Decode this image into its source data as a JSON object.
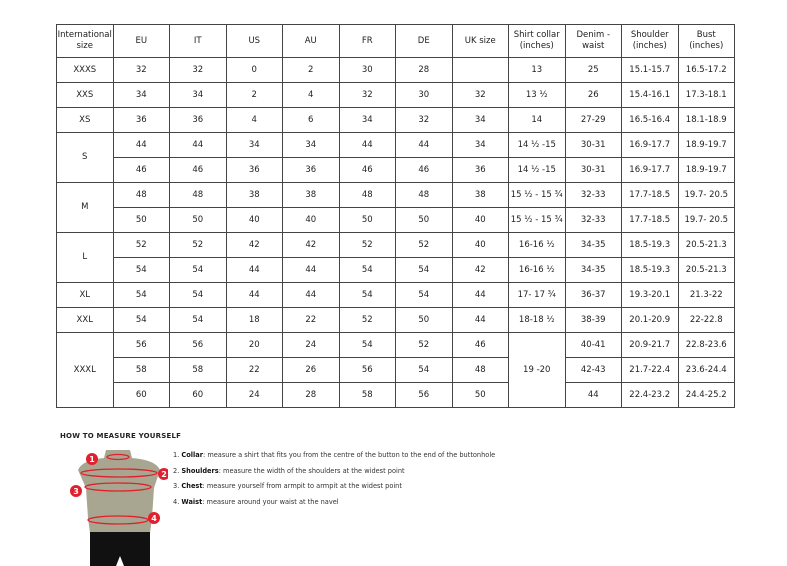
{
  "table": {
    "headers": [
      "International size",
      "EU",
      "IT",
      "US",
      "AU",
      "FR",
      "DE",
      "UK size",
      "Shirt collar (inches)",
      "Denim - waist",
      "Shoulder (inches)",
      "Bust (inches)"
    ],
    "groups": [
      {
        "size": "XXXS",
        "rows": [
          [
            "32",
            "32",
            "0",
            "2",
            "30",
            "28",
            "",
            "13",
            "25",
            "15.1-15.7",
            "16.5-17.2"
          ]
        ]
      },
      {
        "size": "XXS",
        "rows": [
          [
            "34",
            "34",
            "2",
            "4",
            "32",
            "30",
            "32",
            "13 ½",
            "26",
            "15.4-16.1",
            "17.3-18.1"
          ]
        ]
      },
      {
        "size": "XS",
        "rows": [
          [
            "36",
            "36",
            "4",
            "6",
            "34",
            "32",
            "34",
            "14",
            "27-29",
            "16.5-16.4",
            "18.1-18.9"
          ]
        ]
      },
      {
        "size": "S",
        "rows": [
          [
            "44",
            "44",
            "34",
            "34",
            "44",
            "44",
            "34",
            "14 ½ -15",
            "30-31",
            "16.9-17.7",
            "18.9-19.7"
          ],
          [
            "46",
            "46",
            "36",
            "36",
            "46",
            "46",
            "36",
            "14 ½ -15",
            "30-31",
            "16.9-17.7",
            "18.9-19.7"
          ]
        ]
      },
      {
        "size": "M",
        "rows": [
          [
            "48",
            "48",
            "38",
            "38",
            "48",
            "48",
            "38",
            "15 ½ - 15 ¾",
            "32-33",
            "17.7-18.5",
            "19.7- 20.5"
          ],
          [
            "50",
            "50",
            "40",
            "40",
            "50",
            "50",
            "40",
            "15 ½ - 15 ¾",
            "32-33",
            "17.7-18.5",
            "19.7- 20.5"
          ]
        ]
      },
      {
        "size": "L",
        "rows": [
          [
            "52",
            "52",
            "42",
            "42",
            "52",
            "52",
            "40",
            "16-16 ½",
            "34-35",
            "18.5-19.3",
            "20.5-21.3"
          ],
          [
            "54",
            "54",
            "44",
            "44",
            "54",
            "54",
            "42",
            "16-16 ½",
            "34-35",
            "18.5-19.3",
            "20.5-21.3"
          ]
        ]
      },
      {
        "size": "XL",
        "rows": [
          [
            "54",
            "54",
            "44",
            "44",
            "54",
            "54",
            "44",
            "17- 17 ¾",
            "36-37",
            "19.3-20.1",
            "21.3-22"
          ]
        ]
      },
      {
        "size": "XXL",
        "rows": [
          [
            "54",
            "54",
            "18",
            "22",
            "52",
            "50",
            "44",
            "18-18 ½",
            "38-39",
            "20.1-20.9",
            "22-22.8"
          ]
        ]
      },
      {
        "size": "XXXL",
        "rows": [
          [
            "56",
            "56",
            "20",
            "24",
            "54",
            "52",
            "46",
            "19 -20",
            "40-41",
            "20.9-21.7",
            "22.8-23.6"
          ],
          [
            "58",
            "58",
            "22",
            "26",
            "56",
            "54",
            "48",
            null,
            "42-43",
            "21.7-22.4",
            "23.6-24.4"
          ],
          [
            "60",
            "60",
            "24",
            "28",
            "58",
            "56",
            "50",
            null,
            "44",
            "22.4-23.2",
            "24.4-25.2"
          ]
        ]
      }
    ]
  },
  "measure": {
    "title": "HOW TO MEASURE YOURSELF",
    "markers": [
      "1",
      "2",
      "3",
      "4"
    ],
    "steps": [
      {
        "num": "1.",
        "term": "Collar",
        "text": ": measure a shirt that fits you from the centre of the button to the end of the buttonhole"
      },
      {
        "num": "2.",
        "term": "Shoulders",
        "text": ": measure the width of the shoulders at the widest point"
      },
      {
        "num": "3.",
        "term": "Chest",
        "text": ": measure yourself from armpit to armpit at the widest point"
      },
      {
        "num": "4.",
        "term": "Waist",
        "text": ": measure around your waist at the navel"
      }
    ],
    "accent_color": "#e0202e",
    "body_color": "#a8a690"
  }
}
